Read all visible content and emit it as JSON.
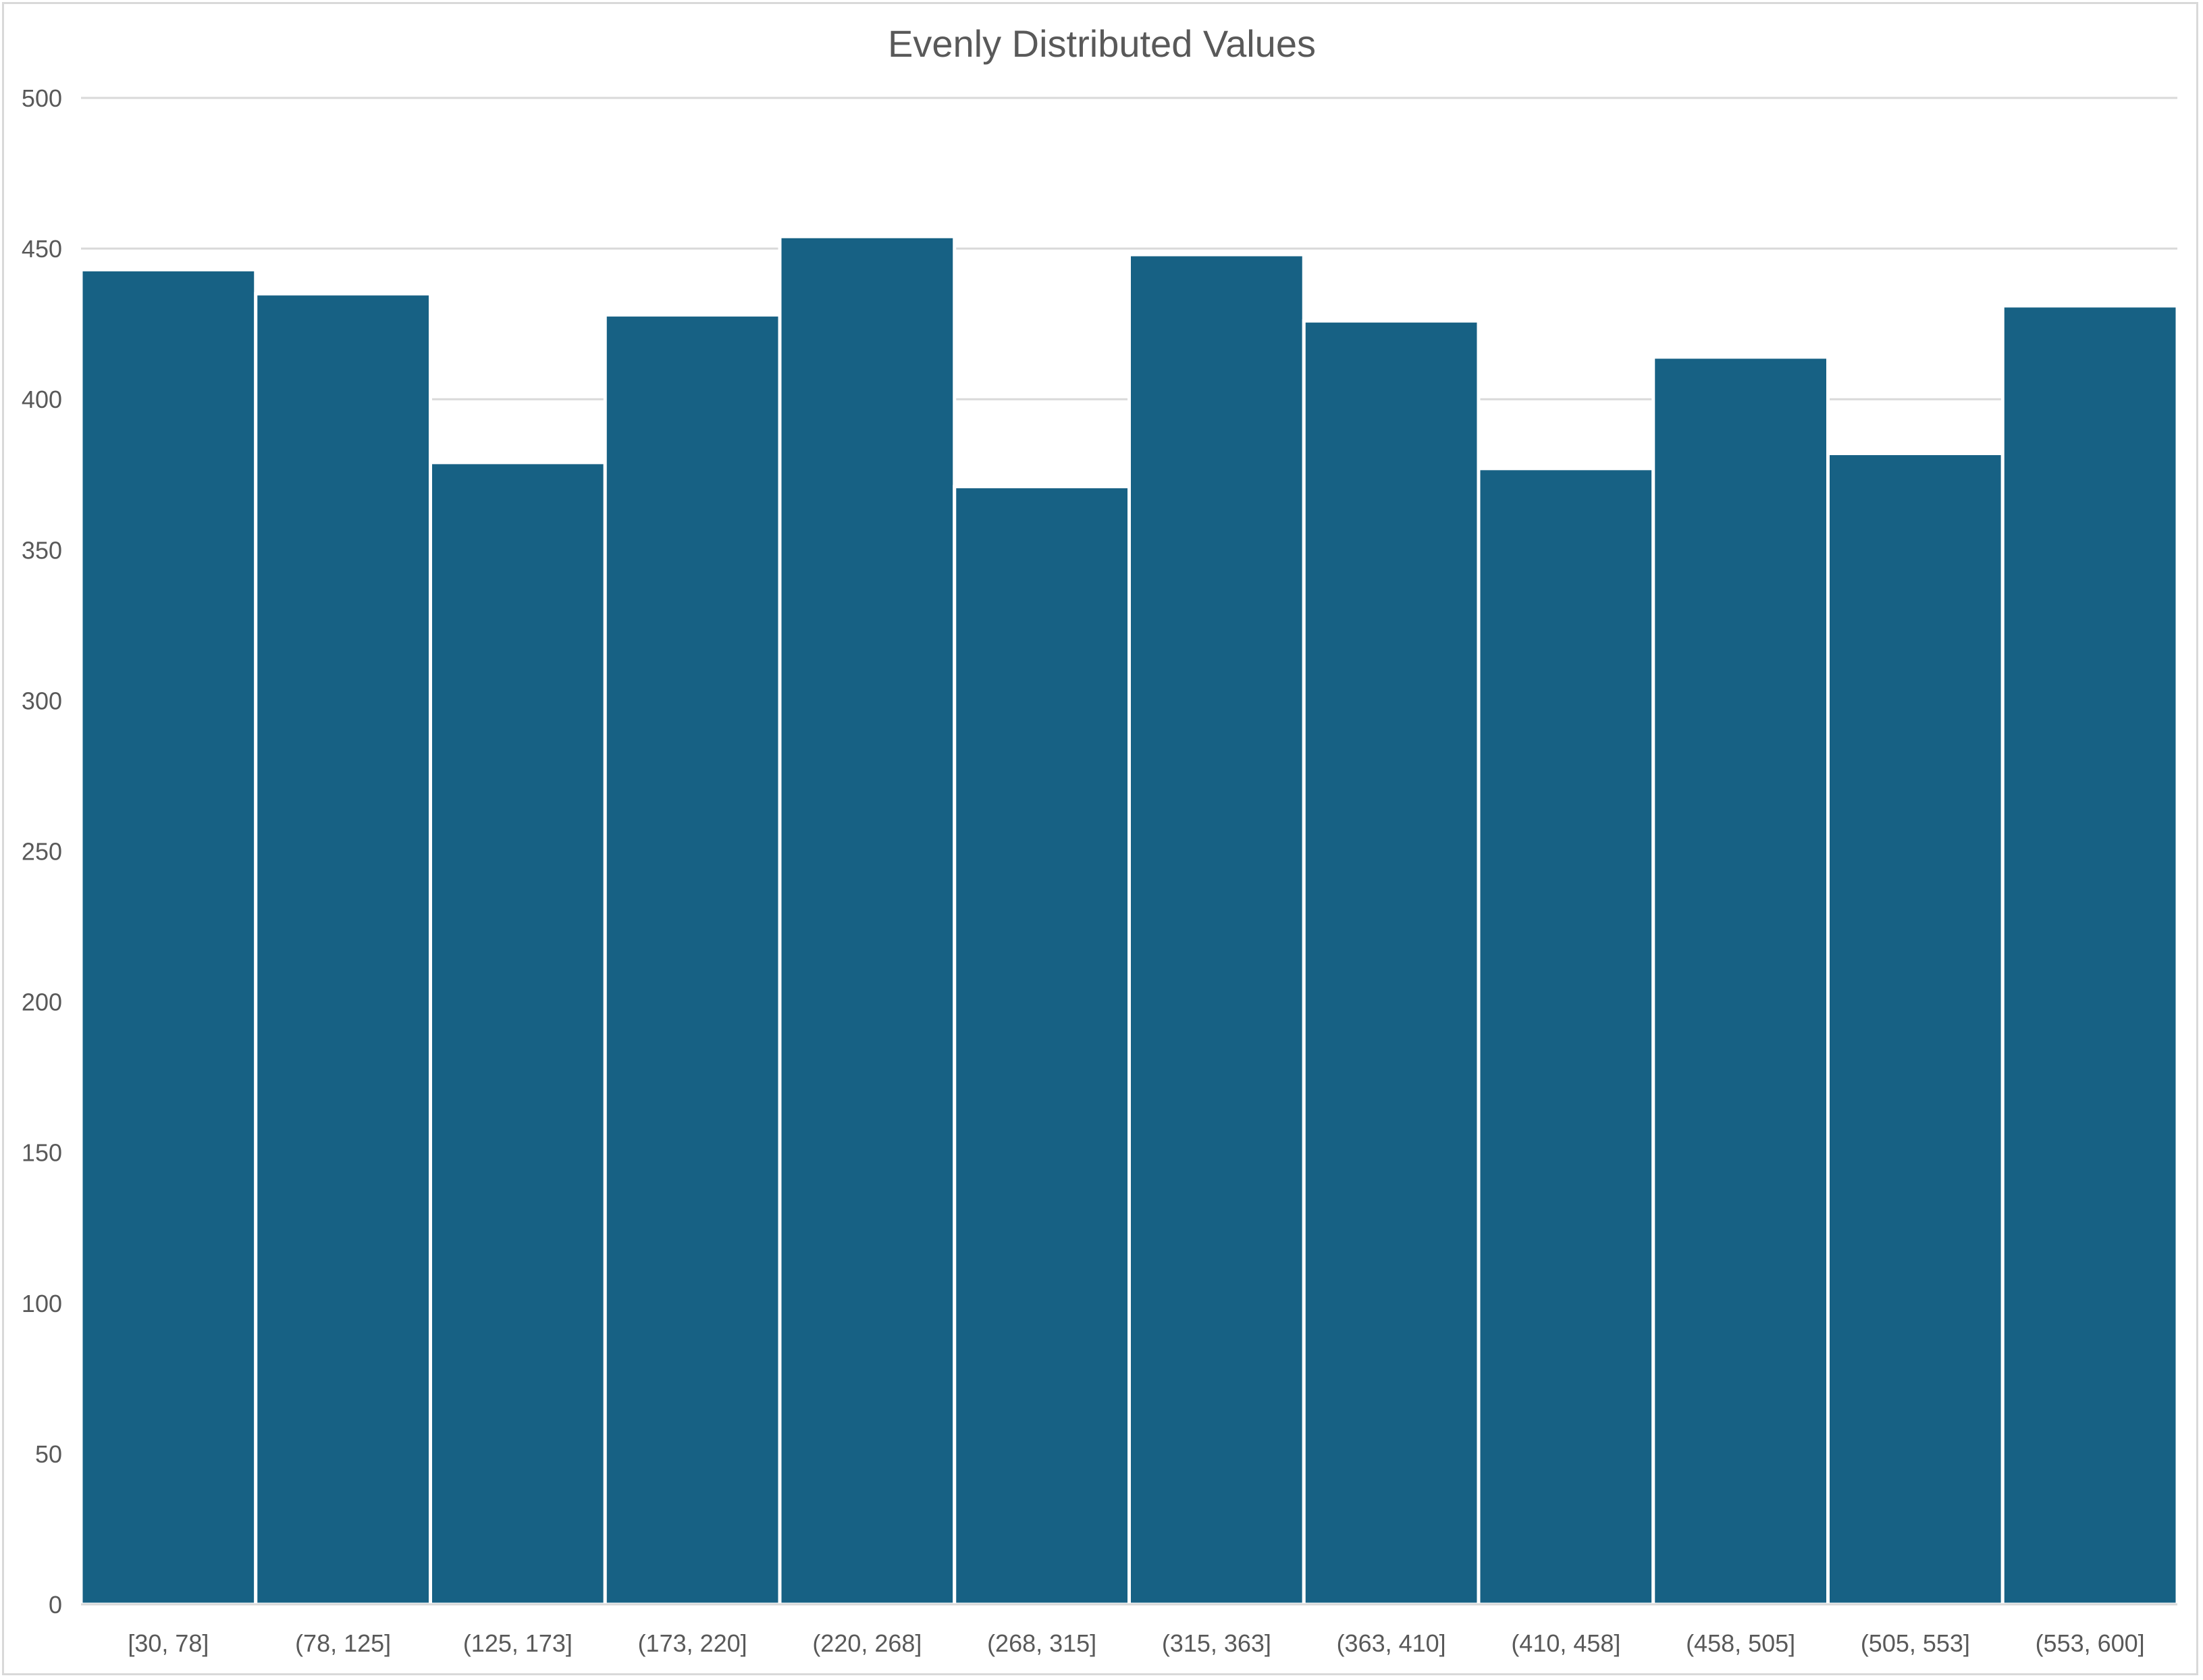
{
  "chart_data": {
    "type": "bar",
    "title": "Evenly Distributed Values",
    "xlabel": "",
    "ylabel": "",
    "categories": [
      "[30, 78]",
      "(78, 125]",
      "(125, 173]",
      "(173, 220]",
      "(220, 268]",
      "(268, 315]",
      "(315, 363]",
      "(363, 410]",
      "(410, 458]",
      "(458, 505]",
      "(505, 553]",
      "(553, 600]"
    ],
    "values": [
      443,
      435,
      379,
      428,
      454,
      371,
      448,
      426,
      377,
      414,
      382,
      431
    ],
    "ylim": [
      0,
      500
    ],
    "yticks": [
      0,
      50,
      100,
      150,
      200,
      250,
      300,
      350,
      400,
      450,
      500
    ],
    "grid": true,
    "legend": "none",
    "colors": {
      "bar": "#176184",
      "bar_border": "#ffffff",
      "gridline": "#d9d9d9",
      "text": "#595959",
      "frame": "#d9d9d9"
    }
  }
}
